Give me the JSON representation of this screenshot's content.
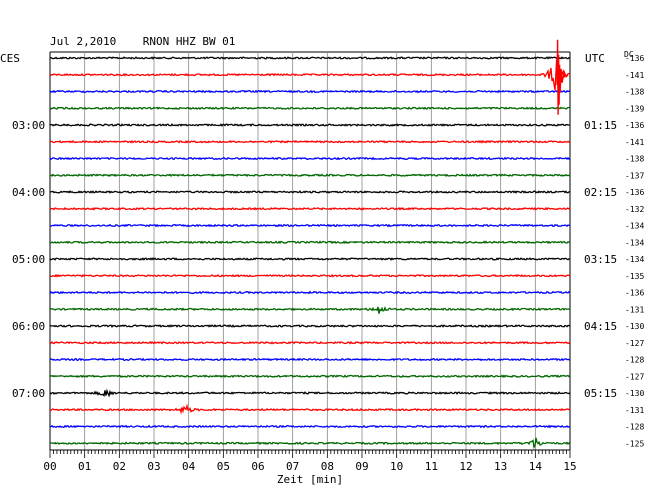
{
  "chart_data": {
    "type": "line",
    "title": "Jul 2,2010    RNON HHZ BW 01",
    "left_timezone": "CES",
    "right_timezone": "UTC",
    "right_header": "DC",
    "xlabel": "Zeit [min]",
    "xlim": [
      0,
      15
    ],
    "x_ticks": [
      "00",
      "01",
      "02",
      "03",
      "04",
      "05",
      "06",
      "07",
      "08",
      "09",
      "10",
      "11",
      "12",
      "13",
      "14",
      "15"
    ],
    "line_colors": [
      "#000000",
      "#ff0000",
      "#0000ff",
      "#006600"
    ],
    "left_hour_labels": [
      {
        "row": 4,
        "label": "03:00"
      },
      {
        "row": 8,
        "label": "04:00"
      },
      {
        "row": 12,
        "label": "05:00"
      },
      {
        "row": 16,
        "label": "06:00"
      },
      {
        "row": 20,
        "label": "07:00"
      }
    ],
    "right_hour_labels": [
      {
        "row": 4,
        "label": "01:15"
      },
      {
        "row": 8,
        "label": "02:15"
      },
      {
        "row": 12,
        "label": "03:15"
      },
      {
        "row": 16,
        "label": "04:15"
      },
      {
        "row": 20,
        "label": "05:15"
      }
    ],
    "dc_offsets": [
      -136,
      -141,
      -138,
      -139,
      -136,
      -141,
      -138,
      -137,
      -136,
      -132,
      -134,
      -134,
      -134,
      -135,
      -136,
      -131,
      -130,
      -127,
      -128,
      -127,
      -130,
      -131,
      -128,
      -125
    ],
    "events": [
      {
        "row": 1,
        "minute": 14.6,
        "amplitude": 6.0
      },
      {
        "row": 15,
        "minute": 9.5,
        "amplitude": 1.3
      },
      {
        "row": 20,
        "minute": 1.6,
        "amplitude": 1.2
      },
      {
        "row": 21,
        "minute": 3.9,
        "amplitude": 1.4
      },
      {
        "row": 23,
        "minute": 14.0,
        "amplitude": 1.6
      }
    ]
  }
}
